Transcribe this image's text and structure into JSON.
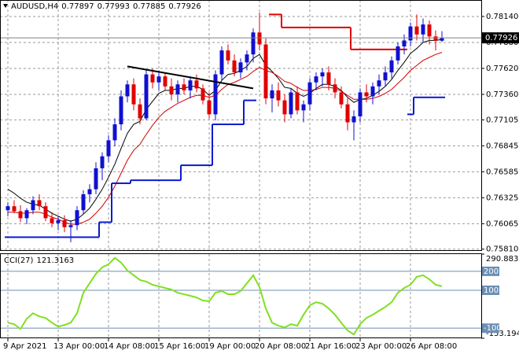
{
  "chart_data": [
    {
      "type": "candlestick",
      "title": "AUDUSD,H4",
      "categories": [
        "9 Apr 2021",
        null,
        null,
        null,
        null,
        null,
        null,
        null,
        "13 Apr 00:00",
        null,
        null,
        null,
        null,
        null,
        null,
        null,
        "14 Apr 08:00",
        null,
        null,
        null,
        null,
        null,
        null,
        null,
        "15 Apr 16:00",
        null,
        null,
        null,
        null,
        null,
        null,
        null,
        "19 Apr 00:00",
        null,
        null,
        null,
        null,
        null,
        null,
        null,
        "20 Apr 08:00",
        null,
        null,
        null,
        null,
        null,
        null,
        null,
        "21 Apr 16:00",
        null,
        null,
        null,
        null,
        null,
        null,
        null,
        "23 Apr 00:00",
        null,
        null,
        null,
        null,
        null,
        null,
        null,
        "26 Apr 08:00",
        null,
        null,
        null,
        null,
        null
      ],
      "open": [
        0.762,
        0.7624,
        0.7619,
        0.7612,
        0.762,
        0.763,
        0.7624,
        0.7612,
        0.7607,
        0.761,
        0.7603,
        0.7605,
        0.762,
        0.7636,
        0.7641,
        0.7662,
        0.7674,
        0.769,
        0.7706,
        0.7734,
        0.7746,
        0.7726,
        0.7712,
        0.7756,
        0.7748,
        0.7754,
        0.7744,
        0.7736,
        0.7746,
        0.774,
        0.775,
        0.7742,
        0.773,
        0.7716,
        0.7756,
        0.778,
        0.777,
        0.7758,
        0.7768,
        0.7776,
        0.7798,
        0.7786,
        0.7732,
        0.774,
        0.773,
        0.7716,
        0.7738,
        0.772,
        0.7726,
        0.7748,
        0.7754,
        0.7758,
        0.7746,
        0.7738,
        0.7726,
        0.7708,
        0.7714,
        0.7738,
        0.7734,
        0.7744,
        0.775,
        0.7758,
        0.777,
        0.7784,
        0.779,
        0.7804,
        0.7796,
        0.7806,
        0.7794,
        0.77897
      ],
      "high": [
        0.7628,
        0.763,
        0.7625,
        0.7622,
        0.7634,
        0.7636,
        0.7628,
        0.7618,
        0.7614,
        0.7615,
        0.761,
        0.7624,
        0.764,
        0.7646,
        0.7668,
        0.7678,
        0.7695,
        0.7712,
        0.774,
        0.775,
        0.7752,
        0.7732,
        0.776,
        0.7762,
        0.776,
        0.7758,
        0.7752,
        0.775,
        0.7752,
        0.7754,
        0.7756,
        0.7746,
        0.7738,
        0.776,
        0.7784,
        0.7786,
        0.7776,
        0.7772,
        0.778,
        0.7802,
        0.7818,
        0.7792,
        0.7746,
        0.7748,
        0.7736,
        0.7742,
        0.7744,
        0.773,
        0.7752,
        0.7758,
        0.7762,
        0.7764,
        0.7752,
        0.7744,
        0.7732,
        0.772,
        0.7742,
        0.7746,
        0.7748,
        0.7756,
        0.7764,
        0.7774,
        0.7788,
        0.7796,
        0.7808,
        0.7816,
        0.7812,
        0.781,
        0.78,
        0.77993
      ],
      "low": [
        0.7614,
        0.7617,
        0.7608,
        0.7606,
        0.7616,
        0.762,
        0.7609,
        0.7603,
        0.76,
        0.7598,
        0.7588,
        0.76,
        0.7616,
        0.7628,
        0.7636,
        0.765,
        0.7668,
        0.7684,
        0.77,
        0.7728,
        0.772,
        0.7706,
        0.771,
        0.7742,
        0.774,
        0.774,
        0.773,
        0.7728,
        0.7736,
        0.7732,
        0.7738,
        0.7726,
        0.7712,
        0.771,
        0.775,
        0.7766,
        0.7754,
        0.7752,
        0.776,
        0.7768,
        0.778,
        0.7726,
        0.7718,
        0.7724,
        0.7708,
        0.7712,
        0.7716,
        0.7708,
        0.772,
        0.774,
        0.7744,
        0.774,
        0.7732,
        0.7722,
        0.77,
        0.769,
        0.7708,
        0.7728,
        0.7726,
        0.7736,
        0.7744,
        0.7752,
        0.7766,
        0.7776,
        0.7784,
        0.779,
        0.7788,
        0.7786,
        0.778,
        0.77885
      ],
      "close": [
        0.7624,
        0.7619,
        0.7612,
        0.762,
        0.763,
        0.7624,
        0.7612,
        0.7607,
        0.761,
        0.7603,
        0.7605,
        0.762,
        0.7636,
        0.7641,
        0.7662,
        0.7674,
        0.769,
        0.7706,
        0.7734,
        0.7746,
        0.7726,
        0.7712,
        0.7756,
        0.7748,
        0.7754,
        0.7744,
        0.7736,
        0.7746,
        0.774,
        0.775,
        0.7742,
        0.773,
        0.7716,
        0.7756,
        0.778,
        0.777,
        0.7758,
        0.7768,
        0.7776,
        0.7798,
        0.7786,
        0.7732,
        0.774,
        0.773,
        0.7716,
        0.7738,
        0.772,
        0.7726,
        0.7748,
        0.7754,
        0.7758,
        0.7746,
        0.7738,
        0.7726,
        0.7708,
        0.7714,
        0.7738,
        0.7734,
        0.7744,
        0.775,
        0.7758,
        0.777,
        0.7784,
        0.779,
        0.7804,
        0.7796,
        0.7806,
        0.7794,
        0.77897,
        0.77926
      ],
      "up_color": "#1010d0",
      "down_color": "#e00000",
      "series": [
        {
          "color": "#000000",
          "style": "line",
          "values": [
            0.7641,
            0.7637,
            0.7632,
            0.7628,
            0.7626,
            0.7625,
            0.7621,
            0.7617,
            0.7614,
            0.7611,
            0.7609,
            0.7611,
            0.7616,
            0.7622,
            0.7631,
            0.7641,
            0.7653,
            0.7666,
            0.7682,
            0.7697,
            0.7706,
            0.7709,
            0.7721,
            0.7729,
            0.7737,
            0.774,
            0.774,
            0.7742,
            0.7742,
            0.7744,
            0.7744,
            0.7741,
            0.7735,
            0.774,
            0.775,
            0.7756,
            0.7757,
            0.776,
            0.7764,
            0.7772,
            0.7776,
            0.7765,
            0.7759,
            0.7752,
            0.7743,
            0.7742,
            0.7737,
            0.7734,
            0.7737,
            0.7742,
            0.7746,
            0.7746,
            0.7744,
            0.774,
            0.7733,
            0.7728,
            0.7731,
            0.7732,
            0.7735,
            0.7739,
            0.7744,
            0.7751,
            0.776,
            0.7768,
            0.7777,
            0.7782,
            0.7788,
            0.779,
            0.779,
            0.7791
          ]
        },
        {
          "color": "#d00000",
          "style": "line",
          "values": [
            0.7618,
            0.7618,
            0.7617,
            0.7617,
            0.7618,
            0.7618,
            0.7616,
            0.7613,
            0.7611,
            0.7608,
            0.7606,
            0.7606,
            0.7608,
            0.7611,
            0.7617,
            0.7624,
            0.7633,
            0.7644,
            0.7657,
            0.767,
            0.768,
            0.7686,
            0.7696,
            0.7705,
            0.7713,
            0.7719,
            0.7723,
            0.7727,
            0.773,
            0.7733,
            0.7735,
            0.7735,
            0.7733,
            0.7735,
            0.7741,
            0.7746,
            0.7748,
            0.7751,
            0.7754,
            0.7759,
            0.7763,
            0.776,
            0.7758,
            0.7754,
            0.7749,
            0.7747,
            0.7743,
            0.774,
            0.774,
            0.7741,
            0.7743,
            0.7743,
            0.7742,
            0.7739,
            0.7735,
            0.7731,
            0.7731,
            0.7731,
            0.7732,
            0.7734,
            0.7737,
            0.7741,
            0.7747,
            0.7753,
            0.776,
            0.7765,
            0.777,
            0.7773,
            0.7776,
            0.7778
          ]
        },
        {
          "color": "#0a1ad0",
          "style": "step",
          "values": [
            0.7593,
            0.7593,
            0.7593,
            0.7593,
            0.7593,
            0.7593,
            0.7593,
            0.7593,
            0.7593,
            0.7593,
            0.7593,
            0.7593,
            0.7593,
            0.7593,
            0.7593,
            0.7608,
            0.7608,
            0.7647,
            0.7647,
            0.7647,
            0.765,
            0.765,
            0.765,
            0.765,
            0.765,
            0.765,
            0.765,
            0.765,
            0.7665,
            0.7665,
            0.7665,
            0.7665,
            0.7665,
            0.7706,
            0.7706,
            0.7706,
            0.7706,
            0.7706,
            0.773,
            0.773,
            null,
            null,
            null,
            null,
            null,
            null,
            null,
            null,
            null,
            null,
            null,
            null,
            null,
            null,
            null,
            null,
            null,
            null,
            null,
            null,
            null,
            null,
            null,
            null,
            0.7716,
            0.7733,
            0.7733,
            0.7733,
            0.7733,
            0.7733
          ]
        },
        {
          "color": "#e00000",
          "style": "step",
          "values": [
            null,
            null,
            null,
            null,
            null,
            null,
            null,
            null,
            null,
            null,
            null,
            null,
            null,
            null,
            null,
            null,
            null,
            null,
            null,
            null,
            null,
            null,
            null,
            null,
            null,
            null,
            null,
            null,
            null,
            null,
            null,
            null,
            null,
            null,
            null,
            null,
            null,
            null,
            null,
            null,
            null,
            null,
            0.7816,
            0.7816,
            0.7803,
            0.7803,
            0.7803,
            0.7803,
            0.7803,
            0.7803,
            0.7803,
            0.7803,
            0.7803,
            0.7803,
            0.7803,
            0.7781,
            0.7781,
            0.7781,
            0.7781,
            0.7781,
            0.7781,
            0.7781,
            0.7781,
            0.7781,
            null,
            null,
            null,
            null,
            null,
            null
          ]
        }
      ],
      "trendline": {
        "color": "#000000",
        "x": [
          19,
          39
        ],
        "values": [
          0.7764,
          0.7742
        ]
      },
      "ylim": [
        0.758,
        0.78305
      ],
      "yticks": [
        {
          "value": 0.7814,
          "label": "0.78140"
        },
        {
          "value": 0.7788,
          "label": "0.77880"
        },
        {
          "value": 0.7762,
          "label": "0.77620"
        },
        {
          "value": 0.7736,
          "label": "0.77360"
        },
        0.77105,
        0.76845,
        0.76585,
        0.76325,
        0.76065,
        {
          "value": 0.7581,
          "label": "0.75810"
        }
      ],
      "grid": true
    },
    {
      "type": "line",
      "title": "CCI(27)",
      "color": "#80e020",
      "values": [
        -71,
        -79,
        -104,
        -50,
        -21,
        -38,
        -46,
        -71,
        -92,
        -83,
        -71,
        -21,
        87,
        137,
        187,
        221,
        237,
        271,
        246,
        204,
        179,
        154,
        146,
        129,
        121,
        112,
        104,
        87,
        79,
        71,
        62,
        46,
        42,
        87,
        96,
        79,
        79,
        96,
        137,
        179,
        117,
        4,
        -71,
        -87,
        -96,
        -79,
        -87,
        -29,
        21,
        37,
        29,
        4,
        -29,
        -71,
        -112,
        -133,
        -79,
        -46,
        -29,
        -8,
        12,
        37,
        87,
        112,
        129,
        171,
        179,
        158,
        129,
        121.3163
      ],
      "ylim": [
        -153.1947,
        290.8837
      ],
      "yticks": [
        290.8837,
        -153.1947
      ],
      "levels": [
        200,
        100,
        -100
      ],
      "level_color": "#6c8fb4"
    }
  ]
}
